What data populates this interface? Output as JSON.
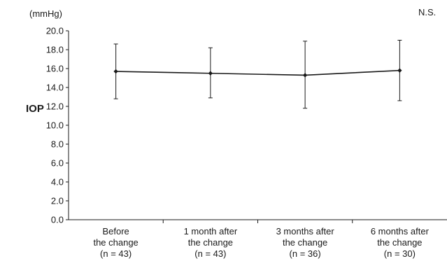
{
  "chart_data": {
    "type": "line",
    "title": "",
    "ylabel": "IOP",
    "yunit": "(mmHg)",
    "annotation": "N.S.",
    "ylim": [
      0,
      20
    ],
    "yticks": [
      "0.0",
      "2.0",
      "4.0",
      "6.0",
      "8.0",
      "10.0",
      "12.0",
      "14.0",
      "16.0",
      "18.0",
      "20.0"
    ],
    "categories": [
      [
        "Before",
        "the change",
        "(n = 43)"
      ],
      [
        "1 month after",
        "the change",
        "(n = 43)"
      ],
      [
        "3 months after",
        "the change",
        "(n = 36)"
      ],
      [
        "6 months after",
        "the change",
        "(n = 30)"
      ]
    ],
    "series": [
      {
        "values": [
          15.7,
          15.5,
          15.3,
          15.8
        ],
        "error_low": [
          12.8,
          12.9,
          11.8,
          12.6
        ],
        "error_high": [
          18.6,
          18.2,
          18.9,
          19.0
        ]
      }
    ],
    "grid": false,
    "colors": {
      "line": "#1a1a1a",
      "axis": "#1a1a1a"
    }
  }
}
